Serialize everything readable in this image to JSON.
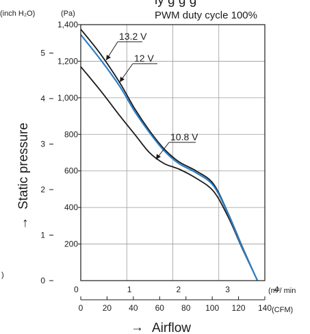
{
  "chart_data": {
    "type": "line",
    "title": "PWM duty cycle 100%",
    "header_clip": "ly  g   g  g",
    "xlabel": "Airflow",
    "xlabel_arrow": "→",
    "ylabel": "Static pressure",
    "ylabel_arrow": "→",
    "y_units": {
      "inch": "(inch H₂O)",
      "pa": "(Pa)"
    },
    "x_units": {
      "m3": "(m³/ min",
      "cfm": "(CFM)"
    },
    "left_clip": ")",
    "xlim_m3min": [
      0,
      3.75
    ],
    "ylim_pa": [
      0,
      1400
    ],
    "grid": true,
    "x_ticks_m3min": [
      "0",
      "1",
      "2",
      "3",
      "4"
    ],
    "x_ticks_cfm": [
      "0",
      "20",
      "40",
      "60",
      "80",
      "100",
      "120",
      "140"
    ],
    "y_ticks_pa": [
      "",
      "200",
      "400",
      "600",
      "800",
      "1,000",
      "1,200",
      "1,400"
    ],
    "y_ticks_inch": [
      "0",
      "1",
      "2",
      "3",
      "4",
      "5"
    ],
    "series": [
      {
        "name": "13.2 V",
        "color": "#1a1a1a",
        "x": [
          0,
          0.4,
          0.8,
          1.1,
          1.4,
          1.7,
          2.0,
          2.35,
          2.7,
          3.0,
          3.3,
          3.6
        ],
        "y": [
          1375,
          1240,
          1080,
          940,
          820,
          720,
          650,
          600,
          530,
          370,
          180,
          0
        ]
      },
      {
        "name": "12 V",
        "color": "#2b7fc8",
        "x": [
          0,
          0.4,
          0.8,
          1.1,
          1.4,
          1.7,
          2.0,
          2.35,
          2.7,
          3.0,
          3.3,
          3.6
        ],
        "y": [
          1345,
          1210,
          1060,
          925,
          810,
          710,
          640,
          590,
          520,
          365,
          175,
          0
        ]
      },
      {
        "name": "10.8 V",
        "color": "#1a1a1a",
        "x": [
          0,
          0.4,
          0.8,
          1.1,
          1.4,
          1.7,
          2.0,
          2.35,
          2.7,
          3.0,
          3.3,
          3.6
        ],
        "y": [
          1170,
          1040,
          900,
          800,
          700,
          640,
          610,
          560,
          490,
          350,
          170,
          0
        ]
      }
    ]
  }
}
